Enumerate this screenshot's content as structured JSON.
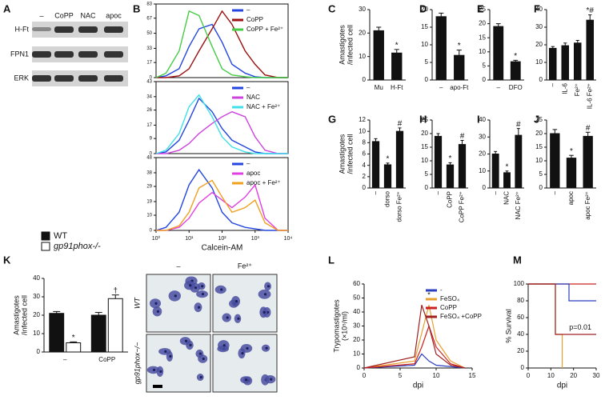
{
  "figure": {
    "panels": [
      "A",
      "B",
      "C",
      "D",
      "E",
      "F",
      "G",
      "H",
      "I",
      "J",
      "K",
      "L",
      "M"
    ],
    "blot": {
      "columns": [
        "–",
        "CoPP",
        "NAC",
        "apoc"
      ],
      "rows": [
        "H-Ft",
        "FPN1",
        "ERK"
      ]
    },
    "micro": {
      "columns": [
        "–",
        "Fe²⁺"
      ],
      "rows": [
        "WT",
        "gp91phox−/−"
      ]
    }
  },
  "chart_data": [
    {
      "type": "line",
      "xscale": "log",
      "x": [
        1,
        2,
        5,
        10,
        20,
        50,
        100,
        200,
        500,
        1000,
        2000,
        5000,
        10000
      ],
      "xlim": [
        1,
        10000
      ],
      "ylim": [
        0,
        83
      ],
      "yticks": [
        0,
        17,
        33,
        50,
        67,
        83
      ],
      "series": [
        {
          "name": "–",
          "color": "#2446e0",
          "values": [
            0,
            2,
            10,
            35,
            55,
            60,
            40,
            15,
            5,
            1,
            0,
            0,
            0
          ]
        },
        {
          "name": "CoPP",
          "color": "#9b1010",
          "values": [
            0,
            0,
            2,
            10,
            30,
            55,
            75,
            60,
            30,
            15,
            3,
            0,
            0
          ]
        },
        {
          "name": "CoPP + Fe²⁺",
          "color": "#44cc44",
          "values": [
            0,
            5,
            30,
            75,
            70,
            35,
            10,
            3,
            1,
            0,
            0,
            0,
            0
          ]
        }
      ]
    },
    {
      "type": "line",
      "xscale": "log",
      "x": [
        1,
        2,
        5,
        10,
        20,
        50,
        100,
        200,
        500,
        1000,
        2000,
        5000,
        10000
      ],
      "xlim": [
        1,
        10000
      ],
      "ylim": [
        0,
        43
      ],
      "yticks": [
        0,
        9,
        17,
        26,
        34,
        43
      ],
      "series": [
        {
          "name": "–",
          "color": "#2446e0",
          "values": [
            0,
            1,
            8,
            20,
            33,
            25,
            15,
            8,
            4,
            1,
            0,
            0,
            0
          ]
        },
        {
          "name": "NAC",
          "color": "#cc44dd",
          "values": [
            0,
            0,
            2,
            6,
            12,
            18,
            22,
            25,
            22,
            10,
            2,
            0,
            0
          ]
        },
        {
          "name": "NAC + Fe²⁺",
          "color": "#40e0e8",
          "values": [
            0,
            2,
            12,
            28,
            35,
            22,
            10,
            4,
            1,
            0,
            0,
            0,
            0
          ]
        }
      ]
    },
    {
      "type": "line",
      "xscale": "log",
      "x": [
        1,
        2,
        5,
        10,
        20,
        50,
        100,
        200,
        500,
        1000,
        2000,
        5000,
        10000
      ],
      "xlim": [
        1,
        10000
      ],
      "xticks": [
        {
          "value": 1,
          "label": "10⁰"
        },
        {
          "value": 10,
          "label": "10¹"
        },
        {
          "value": 100,
          "label": "10²"
        },
        {
          "value": 1000,
          "label": "10³"
        },
        {
          "value": 10000,
          "label": "10⁴"
        }
      ],
      "xlabel": "Calcein-AM",
      "ylim": [
        0,
        48
      ],
      "yticks": [
        0,
        10,
        19,
        29,
        38,
        48
      ],
      "series": [
        {
          "name": "–",
          "color": "#2446e0",
          "values": [
            0,
            2,
            12,
            30,
            40,
            28,
            12,
            5,
            2,
            1,
            0,
            0,
            0
          ]
        },
        {
          "name": "apoc",
          "color": "#e040e0",
          "values": [
            0,
            0,
            2,
            8,
            18,
            25,
            20,
            15,
            22,
            30,
            8,
            0,
            0
          ]
        },
        {
          "name": "apoc + Fe²⁺",
          "color": "#f0a020",
          "values": [
            0,
            0,
            3,
            12,
            28,
            33,
            22,
            12,
            15,
            20,
            5,
            0,
            0
          ]
        }
      ]
    },
    {
      "type": "bar",
      "ylabel": [
        "Amastigotes",
        "/infected cell"
      ],
      "categories": [
        "Mu",
        "H-Ft"
      ],
      "values": [
        21,
        11.5
      ],
      "errors": [
        1.5,
        1.5
      ],
      "significance": [
        null,
        "*"
      ],
      "color": "#111",
      "ylim": [
        0,
        30
      ],
      "yticks": [
        0,
        10,
        20,
        30
      ]
    },
    {
      "type": "bar",
      "categories": [
        "–",
        "apo-Ft"
      ],
      "values": [
        18,
        7
      ],
      "errors": [
        1,
        1.5
      ],
      "significance": [
        null,
        "*"
      ],
      "color": "#111",
      "ylim": [
        0,
        20
      ],
      "yticks": [
        0,
        5,
        10,
        15,
        20
      ]
    },
    {
      "type": "bar",
      "categories": [
        "–",
        "DFO"
      ],
      "values": [
        19,
        6.5
      ],
      "errors": [
        1,
        0.5
      ],
      "significance": [
        null,
        "*"
      ],
      "color": "#111",
      "ylim": [
        0,
        25
      ],
      "yticks": [
        0,
        5,
        10,
        15,
        20,
        25
      ]
    },
    {
      "type": "bar",
      "categories": [
        "–",
        "IL-6",
        "Fe²⁺",
        "IL-6 Fe²⁺"
      ],
      "values": [
        18,
        19.5,
        21,
        34
      ],
      "errors": [
        1,
        1.5,
        1.5,
        3
      ],
      "significance": [
        null,
        null,
        null,
        "*#"
      ],
      "color": "#111",
      "ylim": [
        0,
        40
      ],
      "yticks": [
        0,
        10,
        20,
        30,
        40
      ]
    },
    {
      "type": "bar",
      "ylabel": [
        "Amastigotes",
        "/infected cell"
      ],
      "categories": [
        "–",
        "dorso",
        "dorso Fe²⁺"
      ],
      "values": [
        8.2,
        4.1,
        10
      ],
      "errors": [
        0.5,
        0.3,
        0.6
      ],
      "significance": [
        null,
        "*",
        "#"
      ],
      "color": "#111",
      "ylim": [
        0,
        12
      ],
      "yticks": [
        0,
        2,
        4,
        6,
        8,
        10,
        12
      ]
    },
    {
      "type": "bar",
      "categories": [
        "–",
        "CoPP",
        "CoPP Fe²⁺"
      ],
      "values": [
        19,
        8.5,
        16
      ],
      "errors": [
        1,
        0.8,
        1.5
      ],
      "significance": [
        null,
        "*",
        "#"
      ],
      "color": "#111",
      "ylim": [
        0,
        25
      ],
      "yticks": [
        0,
        5,
        10,
        15,
        20,
        25
      ]
    },
    {
      "type": "bar",
      "categories": [
        "–",
        "NAC",
        "NAC Fe²⁺"
      ],
      "values": [
        20,
        9,
        31
      ],
      "errors": [
        1.5,
        1,
        4
      ],
      "significance": [
        null,
        "*",
        "#"
      ],
      "color": "#111",
      "ylim": [
        0,
        40
      ],
      "yticks": [
        0,
        10,
        20,
        30,
        40
      ]
    },
    {
      "type": "bar",
      "categories": [
        "–",
        "apoc",
        "apoc Fe²⁺"
      ],
      "values": [
        20,
        11,
        19
      ],
      "errors": [
        1.5,
        1,
        1.5
      ],
      "significance": [
        null,
        "*",
        "#"
      ],
      "color": "#111",
      "ylim": [
        0,
        25
      ],
      "yticks": [
        0,
        5,
        10,
        15,
        20,
        25
      ]
    },
    {
      "type": "bar",
      "ylabel": [
        "Amastigotes",
        "/infected cell"
      ],
      "categories": [
        "–",
        "CoPP"
      ],
      "ylim": [
        0,
        40
      ],
      "yticks": [
        0,
        10,
        20,
        30,
        40
      ],
      "series": [
        {
          "name": "WT",
          "color": "#111111",
          "values": [
            21,
            20
          ],
          "errors": [
            1,
            1.5
          ],
          "significance": [
            null,
            null
          ]
        },
        {
          "name": "gp91phox-/-",
          "color": "#ffffff",
          "values": [
            5,
            29
          ],
          "errors": [
            0.5,
            2
          ],
          "significance": [
            "*",
            "†"
          ]
        }
      ]
    },
    {
      "type": "line",
      "x": [
        0,
        7,
        8,
        9,
        10,
        12,
        14
      ],
      "xlim": [
        0,
        15
      ],
      "xticks": [
        0,
        5,
        10,
        15
      ],
      "xlabel": "dpi",
      "ylabel": [
        "Trypomastigotes",
        "(×10⁵/ml)"
      ],
      "ylim": [
        0,
        60
      ],
      "yticks": [
        0,
        10,
        20,
        30,
        40,
        50,
        60
      ],
      "annotations": [
        {
          "text": "*",
          "x": 9,
          "y": 52
        }
      ],
      "series": [
        {
          "name": "-",
          "color": "#2b3fbf",
          "values": [
            0,
            2,
            10,
            5,
            2,
            1,
            0
          ]
        },
        {
          "name": "FeSO₄",
          "color": "#e8a030",
          "values": [
            0,
            5,
            25,
            45,
            20,
            5,
            0
          ]
        },
        {
          "name": "CoPP",
          "color": "#cc2020",
          "values": [
            0,
            3,
            15,
            30,
            15,
            3,
            0
          ]
        },
        {
          "name": "FeSO₄ +CoPP",
          "color": "#a02020",
          "values": [
            0,
            8,
            45,
            30,
            10,
            2,
            0
          ]
        }
      ]
    },
    {
      "type": "step",
      "xlim": [
        0,
        30
      ],
      "xticks": [
        0,
        10,
        20,
        30
      ],
      "xlabel": "dpi",
      "ylabel": [
        "% Survival"
      ],
      "ylim": [
        0,
        100
      ],
      "yticks": [
        0,
        20,
        40,
        60,
        80,
        100
      ],
      "annotations": [
        {
          "text": "p=0.01",
          "x": 23,
          "y": 48
        }
      ],
      "series": [
        {
          "color": "#cc2020",
          "x": [
            0,
            30
          ],
          "values": [
            100,
            100
          ]
        },
        {
          "color": "#2b3fbf",
          "x": [
            0,
            18,
            18,
            30
          ],
          "values": [
            100,
            100,
            80,
            80
          ]
        },
        {
          "color": "#e8a030",
          "x": [
            0,
            12,
            12,
            15,
            15
          ],
          "values": [
            100,
            100,
            40,
            40,
            0
          ]
        },
        {
          "color": "#a02020",
          "x": [
            0,
            12,
            12,
            30
          ],
          "values": [
            100,
            100,
            40,
            40
          ]
        }
      ]
    }
  ]
}
